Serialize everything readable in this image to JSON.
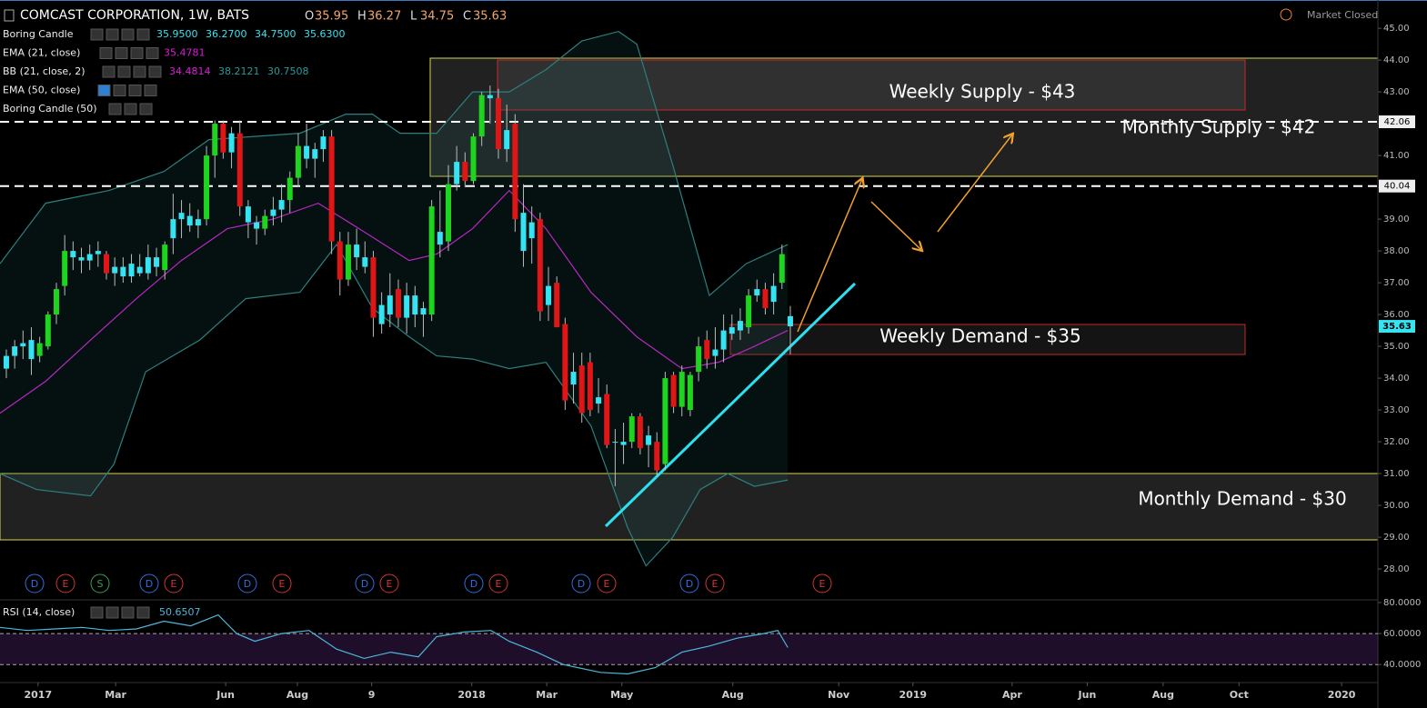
{
  "chart_data": {
    "type": "candlestick",
    "title": "COMCAST CORPORATION, 1W, BATS",
    "status": "Market Closed",
    "readout": [
      {
        "label": "O",
        "value": 35.95
      },
      {
        "label": "H",
        "value": 36.27
      },
      {
        "label": "L",
        "value": 34.75
      },
      {
        "label": "C",
        "value": 35.63
      }
    ],
    "x": [
      0,
      1,
      2,
      3,
      4,
      5,
      6,
      7,
      8,
      9,
      10,
      11,
      12,
      13,
      14,
      15,
      16,
      17,
      18,
      19,
      20,
      21,
      22,
      23,
      24,
      25,
      26,
      27,
      28,
      29,
      30,
      31,
      32,
      33,
      34,
      35,
      36,
      37,
      38,
      39,
      40,
      41,
      42,
      43,
      44,
      45,
      46,
      47,
      48,
      49,
      50,
      51,
      52,
      53,
      54,
      55,
      56,
      57,
      58,
      59,
      60,
      61,
      62,
      63,
      64,
      65,
      66,
      67,
      68,
      69,
      70,
      71,
      72,
      73,
      74,
      75,
      76,
      77,
      78,
      79,
      80,
      81,
      82,
      83,
      84,
      85,
      86,
      87,
      88,
      89,
      90,
      91,
      92,
      93,
      94
    ],
    "ohlc": [
      [
        34.3,
        34.9,
        34.0,
        34.7
      ],
      [
        34.7,
        35.2,
        34.3,
        35.0
      ],
      [
        35.0,
        35.5,
        34.6,
        35.1
      ],
      [
        35.2,
        35.6,
        34.1,
        34.6
      ],
      [
        34.7,
        35.3,
        34.5,
        35.1
      ],
      [
        35.0,
        36.1,
        34.9,
        36.0
      ],
      [
        36.0,
        37.0,
        35.7,
        36.8
      ],
      [
        36.9,
        38.5,
        36.6,
        38.0
      ],
      [
        38.0,
        38.3,
        37.4,
        37.8
      ],
      [
        37.8,
        38.1,
        37.3,
        37.7
      ],
      [
        37.7,
        38.2,
        37.4,
        37.9
      ],
      [
        37.9,
        38.3,
        37.5,
        38.0
      ],
      [
        37.9,
        38.0,
        37.1,
        37.3
      ],
      [
        37.3,
        37.8,
        36.9,
        37.5
      ],
      [
        37.5,
        37.8,
        37.0,
        37.2
      ],
      [
        37.2,
        37.9,
        37.0,
        37.6
      ],
      [
        37.5,
        37.9,
        37.2,
        37.3
      ],
      [
        37.3,
        38.2,
        37.1,
        37.8
      ],
      [
        37.8,
        38.1,
        37.2,
        37.5
      ],
      [
        37.4,
        38.3,
        37.1,
        38.2
      ],
      [
        38.4,
        39.8,
        37.9,
        39.0
      ],
      [
        39.0,
        39.6,
        38.4,
        39.2
      ],
      [
        39.1,
        39.5,
        38.6,
        38.8
      ],
      [
        38.8,
        39.3,
        38.4,
        39.0
      ],
      [
        39.0,
        41.3,
        38.8,
        41.0
      ],
      [
        41.0,
        42.1,
        40.3,
        42.0
      ],
      [
        42.0,
        42.1,
        40.9,
        41.1
      ],
      [
        41.1,
        41.9,
        40.6,
        41.7
      ],
      [
        41.7,
        42.1,
        39.1,
        39.4
      ],
      [
        39.4,
        39.6,
        38.4,
        38.9
      ],
      [
        38.9,
        39.1,
        38.2,
        38.7
      ],
      [
        38.7,
        39.3,
        38.5,
        39.1
      ],
      [
        39.1,
        39.7,
        38.8,
        39.3
      ],
      [
        39.3,
        40.1,
        38.9,
        39.6
      ],
      [
        39.6,
        40.5,
        39.2,
        40.3
      ],
      [
        40.3,
        41.7,
        40.0,
        41.3
      ],
      [
        41.3,
        42.0,
        40.6,
        40.9
      ],
      [
        40.9,
        41.4,
        40.3,
        41.2
      ],
      [
        41.2,
        41.8,
        40.8,
        41.6
      ],
      [
        41.6,
        41.8,
        37.9,
        38.3
      ],
      [
        38.3,
        38.6,
        36.6,
        37.1
      ],
      [
        37.1,
        38.6,
        36.9,
        38.2
      ],
      [
        38.2,
        38.7,
        37.4,
        37.8
      ],
      [
        37.8,
        38.3,
        37.3,
        37.5
      ],
      [
        37.8,
        38.0,
        35.3,
        35.9
      ],
      [
        36.3,
        36.7,
        35.4,
        35.7
      ],
      [
        36.0,
        37.3,
        35.6,
        36.6
      ],
      [
        36.8,
        37.1,
        35.6,
        35.9
      ],
      [
        35.9,
        37.0,
        35.4,
        36.6
      ],
      [
        36.6,
        36.9,
        35.6,
        36.0
      ],
      [
        36.0,
        36.4,
        35.3,
        36.2
      ],
      [
        36.0,
        39.6,
        35.8,
        39.4
      ],
      [
        38.6,
        39.9,
        37.8,
        38.2
      ],
      [
        38.3,
        40.7,
        38.0,
        40.1
      ],
      [
        40.1,
        41.3,
        39.9,
        40.8
      ],
      [
        40.8,
        41.1,
        40.0,
        40.2
      ],
      [
        40.2,
        41.7,
        40.1,
        41.6
      ],
      [
        41.6,
        43.0,
        41.3,
        42.9
      ],
      [
        42.9,
        43.2,
        42.0,
        42.8
      ],
      [
        42.8,
        43.1,
        40.9,
        41.2
      ],
      [
        41.2,
        42.6,
        40.8,
        41.8
      ],
      [
        42.0,
        42.3,
        38.6,
        39.0
      ],
      [
        39.2,
        40.1,
        37.5,
        38.0
      ],
      [
        38.4,
        39.4,
        37.6,
        38.9
      ],
      [
        39.0,
        39.2,
        35.8,
        36.1
      ],
      [
        36.9,
        37.5,
        35.8,
        36.3
      ],
      [
        37.0,
        37.2,
        35.6,
        35.6
      ],
      [
        35.7,
        35.9,
        33.0,
        33.3
      ],
      [
        34.2,
        34.8,
        33.2,
        33.8
      ],
      [
        34.4,
        34.8,
        32.6,
        32.9
      ],
      [
        34.5,
        34.8,
        32.8,
        33.0
      ],
      [
        33.4,
        34.0,
        32.9,
        33.2
      ],
      [
        33.5,
        33.8,
        31.8,
        31.9
      ],
      [
        32.0,
        32.4,
        30.6,
        32.0
      ],
      [
        32.0,
        32.6,
        31.3,
        31.9
      ],
      [
        32.0,
        32.9,
        31.8,
        32.8
      ],
      [
        32.8,
        32.9,
        31.6,
        31.8
      ],
      [
        32.2,
        32.5,
        31.2,
        31.9
      ],
      [
        32.0,
        32.3,
        30.9,
        31.1
      ],
      [
        31.3,
        34.2,
        31.1,
        34.0
      ],
      [
        34.1,
        34.2,
        32.9,
        33.1
      ],
      [
        33.1,
        34.4,
        32.8,
        34.2
      ],
      [
        33.0,
        34.2,
        32.8,
        34.1
      ],
      [
        34.2,
        35.3,
        33.9,
        35.0
      ],
      [
        35.2,
        35.5,
        34.3,
        34.6
      ],
      [
        34.7,
        35.6,
        34.3,
        34.9
      ],
      [
        34.9,
        36.0,
        34.5,
        35.5
      ],
      [
        35.6,
        36.0,
        35.2,
        35.4
      ],
      [
        35.8,
        36.2,
        35.2,
        35.5
      ],
      [
        35.6,
        36.8,
        35.4,
        36.6
      ],
      [
        36.8,
        37.1,
        36.4,
        36.6
      ],
      [
        36.8,
        37.0,
        36.0,
        36.2
      ],
      [
        36.4,
        37.3,
        36.0,
        36.9
      ],
      [
        37.0,
        38.2,
        36.8,
        37.9
      ],
      [
        35.95,
        36.27,
        34.75,
        35.63
      ]
    ],
    "up_color": "#1ed41e",
    "down_color": "#e01616",
    "boring_color": "#35e3f2",
    "wick_color": "#bbbbbb",
    "xlim": [
      -0.76,
      164.45
    ],
    "xticks": [
      {
        "value": 3.8,
        "label": "2017"
      },
      {
        "value": 13.1,
        "label": "Mar"
      },
      {
        "value": 26.3,
        "label": "Jun"
      },
      {
        "value": 34.9,
        "label": "Aug"
      },
      {
        "value": 43.8,
        "label": "9"
      },
      {
        "value": 55.8,
        "label": "2018"
      },
      {
        "value": 64.8,
        "label": "Mar"
      },
      {
        "value": 73.8,
        "label": "May"
      },
      {
        "value": 87.1,
        "label": "Aug"
      },
      {
        "value": 99.8,
        "label": "Nov"
      },
      {
        "value": 108.7,
        "label": "2019"
      },
      {
        "value": 120.6,
        "label": "Apr"
      },
      {
        "value": 129.6,
        "label": "Jun"
      },
      {
        "value": 138.7,
        "label": "Aug"
      },
      {
        "value": 147.8,
        "label": "Oct"
      },
      {
        "value": 160.1,
        "label": "2020"
      }
    ],
    "ylim": [
      27.03,
      45.89
    ],
    "yticks": [
      {
        "value": 28,
        "label": "28.00"
      },
      {
        "value": 29,
        "label": "29.00"
      },
      {
        "value": 30,
        "label": "30.00"
      },
      {
        "value": 31,
        "label": "31.00"
      },
      {
        "value": 32,
        "label": "32.00"
      },
      {
        "value": 33,
        "label": "33.00"
      },
      {
        "value": 34,
        "label": "34.00"
      },
      {
        "value": 35,
        "label": "35.00"
      },
      {
        "value": 36,
        "label": "36.00"
      },
      {
        "value": 37,
        "label": "37.00"
      },
      {
        "value": 38,
        "label": "38.00"
      },
      {
        "value": 39,
        "label": "39.00"
      },
      {
        "value": 40,
        "label": "40.00"
      },
      {
        "value": 41,
        "label": "41.00"
      },
      {
        "value": 42,
        "label": "42.00"
      },
      {
        "value": 43,
        "label": "43.00"
      },
      {
        "value": 44,
        "label": "44.00"
      },
      {
        "value": 45,
        "label": "45.00"
      }
    ],
    "grid": false,
    "price_lines": [
      42.06,
      40.04
    ],
    "last_price": 35.63,
    "legends": [
      {
        "name": "Boring Candle",
        "values": [
          "35.9500",
          "36.2700",
          "34.7500",
          "35.6300"
        ],
        "colors": [
          "#35e3f2",
          "#35e3f2",
          "#35e3f2",
          "#35e3f2"
        ]
      },
      {
        "name": "EMA (21, close)",
        "values": [
          "35.4781"
        ],
        "colors": [
          "#d81ed8"
        ]
      },
      {
        "name": "BB (21, close, 2)",
        "values": [
          "34.4814",
          "38.2121",
          "30.7508"
        ],
        "colors": [
          "#d81ed8",
          "#2a9a9a",
          "#2a9a9a"
        ]
      },
      {
        "name": "EMA (50, close)",
        "values": [],
        "colors": []
      },
      {
        "name": "Boring Candle (50)",
        "values": [],
        "colors": []
      }
    ],
    "indicators": [
      {
        "type": "line",
        "color": "#d81ed8",
        "x": [
          -0.76,
          4.7,
          10.1,
          15.6,
          21.0,
          26.5,
          32.0,
          37.4,
          42.9,
          48.3,
          51.6,
          55.9,
          60.3,
          64.7,
          70.1,
          75.6,
          81.0,
          85.4,
          89.7,
          93.7
        ],
        "values": [
          32.9,
          33.9,
          35.2,
          36.5,
          37.7,
          38.7,
          39.0,
          39.5,
          38.6,
          37.7,
          37.9,
          38.7,
          39.9,
          38.7,
          36.7,
          35.3,
          34.3,
          34.5,
          35.0,
          35.5
        ]
      },
      {
        "type": "band",
        "color": "#2e7f7f",
        "fill": "rgba(30,90,90,0.18)",
        "upper": {
          "x": [
            -0.76,
            4.7,
            12.3,
            18.9,
            24.3,
            29.8,
            35.2,
            40.7,
            43.9,
            47.2,
            51.6,
            55.9,
            60.3,
            64.7,
            69.0,
            73.4,
            75.6,
            79.9,
            84.3,
            88.7,
            93.7
          ],
          "values": [
            37.6,
            39.5,
            39.9,
            40.5,
            41.5,
            41.6,
            41.7,
            42.3,
            42.3,
            41.7,
            41.7,
            43.0,
            43.0,
            43.7,
            44.6,
            44.9,
            44.5,
            40.7,
            36.6,
            37.6,
            38.2
          ]
        },
        "lower": {
          "x": [
            -0.76,
            3.6,
            10.1,
            12.9,
            16.7,
            23.2,
            28.7,
            35.2,
            39.6,
            43.9,
            48.3,
            51.6,
            55.9,
            60.3,
            64.7,
            70.1,
            74.5,
            76.7,
            79.9,
            83.2,
            86.5,
            89.7,
            93.7
          ],
          "values": [
            31.0,
            30.5,
            30.3,
            31.3,
            34.2,
            35.2,
            36.5,
            36.7,
            38.2,
            36.2,
            35.3,
            34.7,
            34.6,
            34.3,
            34.5,
            32.5,
            29.3,
            28.1,
            29.0,
            30.5,
            31.0,
            30.6,
            30.8
          ]
        }
      }
    ],
    "zones": [
      {
        "label": "Weekly Supply - $43"
      },
      {
        "label": "Monthly Supply - $42"
      },
      {
        "label": "Weekly Demand - $35"
      },
      {
        "label": "Monthly Demand - $30"
      }
    ],
    "events": {
      "labels": [
        "D",
        "E",
        "S",
        "D",
        "E",
        "D",
        "E",
        "D",
        "E",
        "D",
        "E",
        "D",
        "E",
        "D",
        "E",
        "E"
      ],
      "colors": {
        "D": "#2f6fdd",
        "E": "#d03535",
        "S": "#35a055"
      }
    },
    "rsi": {
      "name": "RSI (14, close)",
      "value_text": "50.6507",
      "color": "#4cb8da",
      "x": [
        -0.76,
        2.5,
        5.8,
        9.1,
        12.3,
        15.6,
        18.9,
        22.1,
        25.4,
        27.6,
        29.8,
        33.0,
        36.3,
        39.6,
        42.9,
        46.1,
        49.4,
        51.6,
        54.9,
        58.1,
        60.3,
        63.6,
        66.8,
        71.2,
        74.5,
        77.8,
        81.0,
        84.3,
        87.6,
        90.8,
        92.5,
        93.7
      ],
      "values": [
        64,
        62,
        63,
        64,
        62,
        63,
        68,
        65,
        72,
        60,
        55,
        60,
        62,
        50,
        44,
        48,
        45,
        58,
        61,
        62,
        55,
        48,
        40,
        35,
        34,
        38,
        48,
        52,
        57,
        60,
        62,
        51
      ],
      "ylim": [
        29,
        81.16
      ],
      "band": [
        40,
        60
      ],
      "band_color": "rgba(90,40,120,0.35)",
      "yticks": [
        {
          "value": 40,
          "label": "40.0000"
        },
        {
          "value": 60,
          "label": "60.0000"
        },
        {
          "value": 80,
          "label": "80.0000"
        }
      ]
    }
  }
}
